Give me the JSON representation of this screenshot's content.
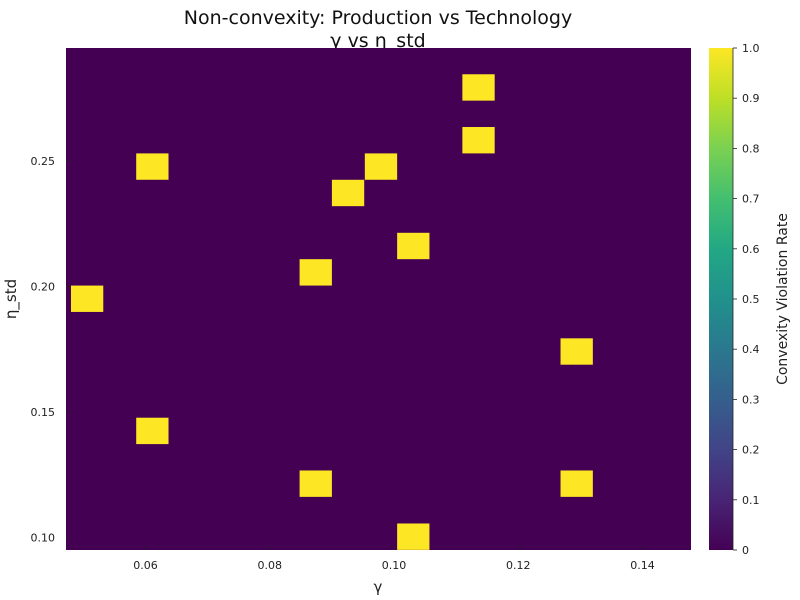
{
  "chart_data": {
    "type": "heatmap",
    "title": "Non-convexity: Production vs Technology",
    "subtitle": "γ vs η_std",
    "xlabel": "γ",
    "ylabel": "η_std",
    "colorbar_label": "Convexity Violation Rate",
    "xlim": [
      0.0472,
      0.1478
    ],
    "ylim": [
      0.0951,
      0.2949
    ],
    "cell_width": 0.0052,
    "cell_height": 0.0105,
    "x_ticks": [
      "0.06",
      "0.08",
      "0.10",
      "0.12",
      "0.14"
    ],
    "x_tick_values": [
      0.06,
      0.08,
      0.1,
      0.12,
      0.14
    ],
    "y_ticks": [
      "0.10",
      "0.15",
      "0.20",
      "0.25"
    ],
    "y_tick_values": [
      0.1,
      0.15,
      0.2,
      0.25
    ],
    "background_value": 0,
    "cells": [
      {
        "x": 0.1136,
        "y": 0.2792,
        "value": 1
      },
      {
        "x": 0.1136,
        "y": 0.2582,
        "value": 1
      },
      {
        "x": 0.0611,
        "y": 0.2477,
        "value": 1
      },
      {
        "x": 0.0979,
        "y": 0.2477,
        "value": 1
      },
      {
        "x": 0.0926,
        "y": 0.2372,
        "value": 1
      },
      {
        "x": 0.1031,
        "y": 0.2161,
        "value": 1
      },
      {
        "x": 0.0874,
        "y": 0.2056,
        "value": 1
      },
      {
        "x": 0.0506,
        "y": 0.1951,
        "value": 1
      },
      {
        "x": 0.1294,
        "y": 0.1741,
        "value": 1
      },
      {
        "x": 0.0611,
        "y": 0.1425,
        "value": 1
      },
      {
        "x": 0.0874,
        "y": 0.1215,
        "value": 1
      },
      {
        "x": 0.1294,
        "y": 0.1215,
        "value": 1
      },
      {
        "x": 0.1031,
        "y": 0.1004,
        "value": 1
      }
    ],
    "colorbar_range": [
      0,
      1
    ],
    "colorbar_ticks": [
      "0",
      "0.1",
      "0.2",
      "0.3",
      "0.4",
      "0.5",
      "0.6",
      "0.7",
      "0.8",
      "0.9",
      "1.0"
    ],
    "colorbar_tick_values": [
      0,
      0.1,
      0.2,
      0.3,
      0.4,
      0.5,
      0.6,
      0.7,
      0.8,
      0.9,
      1.0
    ],
    "colormap": "viridis",
    "colors": {
      "low": "#440154",
      "high": "#fde725"
    },
    "grid": false
  }
}
